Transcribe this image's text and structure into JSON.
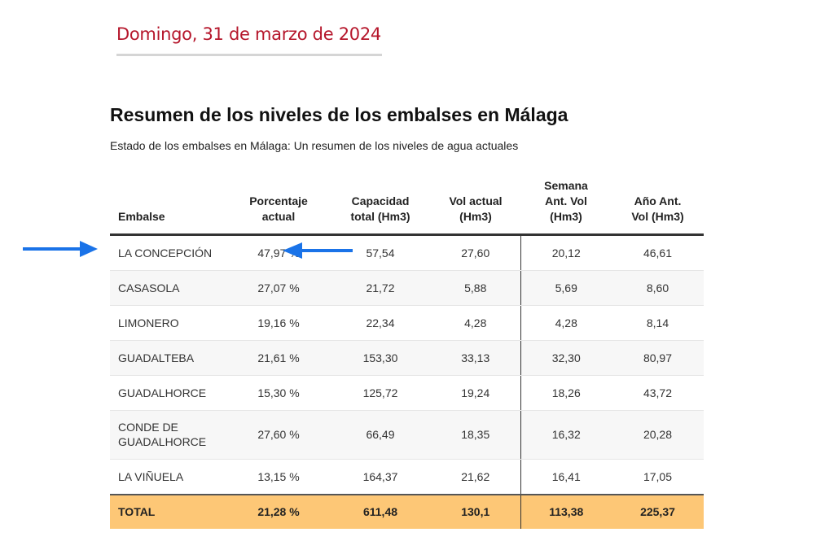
{
  "date": "Domingo, 31 de marzo de 2024",
  "title": "Resumen de los niveles de los embalses en Málaga",
  "subtitle": "Estado de los embalses en Málaga: Un resumen de los niveles de agua actuales",
  "colors": {
    "date": "#b5162b",
    "total_row": "#fdc776",
    "arrow": "#1a73e8"
  },
  "table": {
    "headers": [
      {
        "line1": "",
        "line2": "",
        "line3": "Embalse"
      },
      {
        "line1": "",
        "line2": "Porcentaje",
        "line3": "actual"
      },
      {
        "line1": "",
        "line2": "Capacidad",
        "line3": "total (Hm3)"
      },
      {
        "line1": "",
        "line2": "Vol actual",
        "line3": "(Hm3)"
      },
      {
        "line1": "Semana",
        "line2": "Ant. Vol",
        "line3": "(Hm3)"
      },
      {
        "line1": "",
        "line2": "Año Ant.",
        "line3": "Vol (Hm3)"
      }
    ],
    "rows": [
      {
        "name": "LA CONCEPCIÓN",
        "pct": "47,97 %",
        "cap": "57,54",
        "vol": "27,60",
        "week": "20,12",
        "year": "46,61"
      },
      {
        "name": "CASASOLA",
        "pct": "27,07 %",
        "cap": "21,72",
        "vol": "5,88",
        "week": "5,69",
        "year": "8,60"
      },
      {
        "name": "LIMONERO",
        "pct": "19,16 %",
        "cap": "22,34",
        "vol": "4,28",
        "week": "4,28",
        "year": "8,14"
      },
      {
        "name": "GUADALTEBA",
        "pct": "21,61 %",
        "cap": "153,30",
        "vol": "33,13",
        "week": "32,30",
        "year": "80,97"
      },
      {
        "name": "GUADALHORCE",
        "pct": "15,30 %",
        "cap": "125,72",
        "vol": "19,24",
        "week": "18,26",
        "year": "43,72"
      },
      {
        "name": "CONDE DE GUADALHORCE",
        "pct": "27,60 %",
        "cap": "66,49",
        "vol": "18,35",
        "week": "16,32",
        "year": "20,28"
      },
      {
        "name": "LA VIÑUELA",
        "pct": "13,15 %",
        "cap": "164,37",
        "vol": "21,62",
        "week": "16,41",
        "year": "17,05"
      }
    ],
    "total": {
      "name": "TOTAL",
      "pct": "21,28 %",
      "cap": "611,48",
      "vol": "130,1",
      "week": "113,38",
      "year": "225,37"
    }
  },
  "annotations": {
    "arrow_row_icon": "arrow-right-icon",
    "arrow_value_icon": "arrow-left-icon"
  }
}
